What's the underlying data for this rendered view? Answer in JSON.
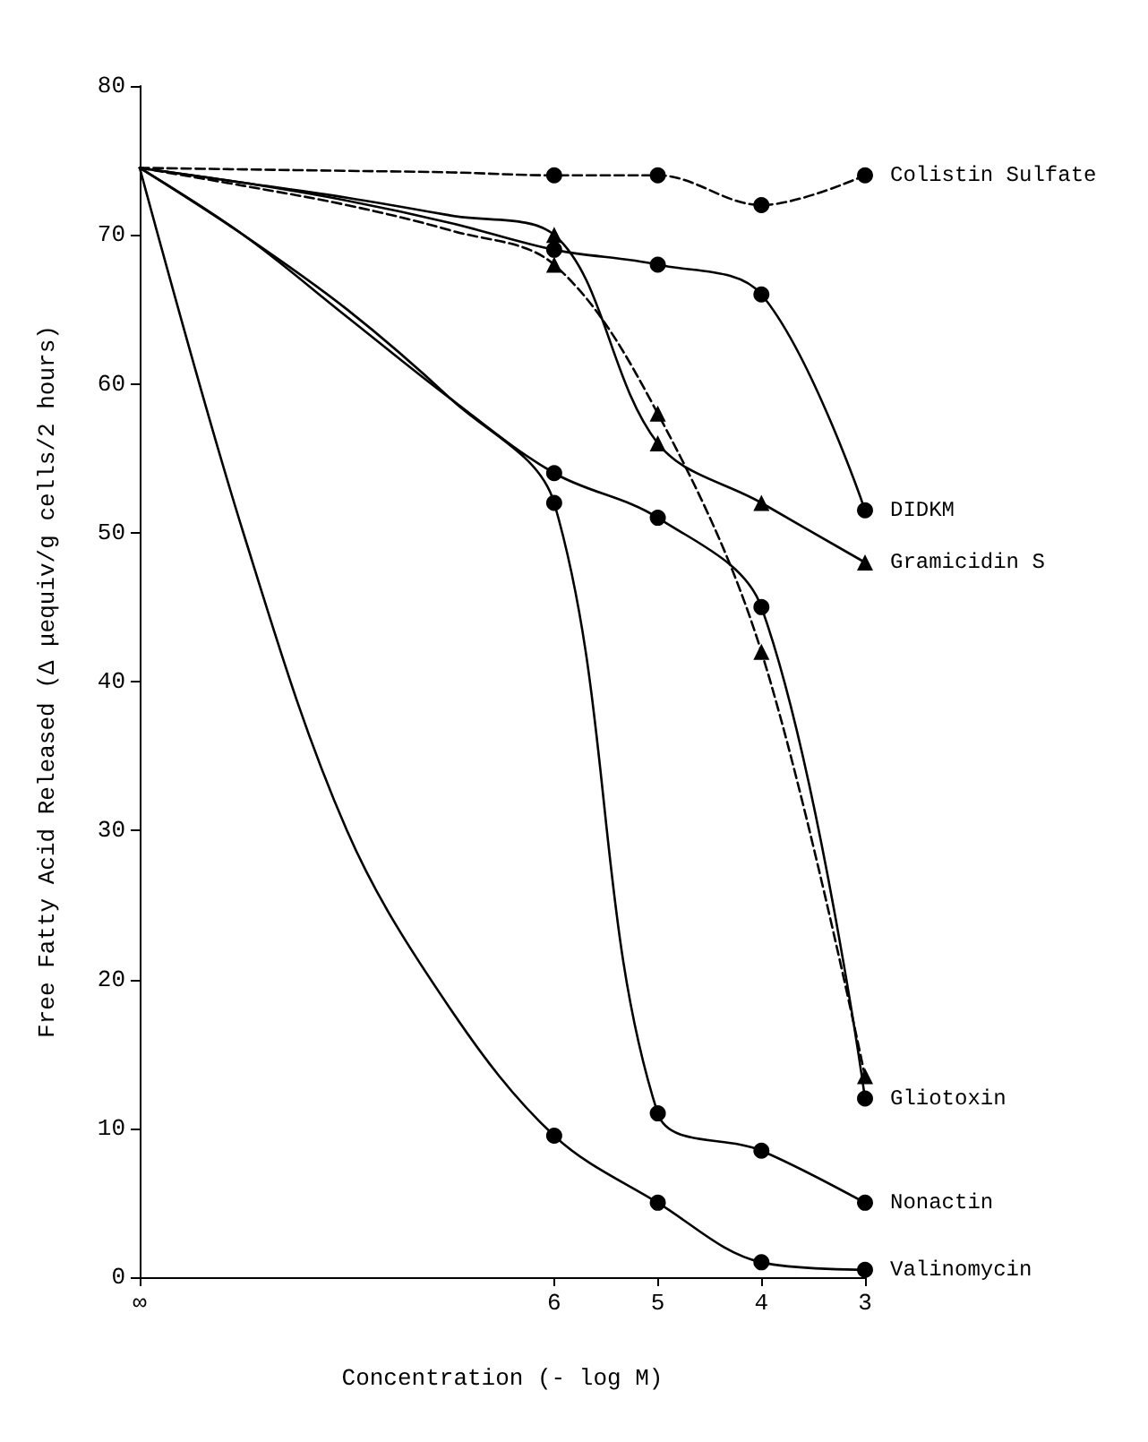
{
  "chart_data": {
    "type": "line",
    "xlabel": "Concentration (- log M)",
    "ylabel": "Free Fatty Acid Released (Δ μequiv/g cells/2 hours)",
    "categories": [
      "∞",
      null,
      null,
      null,
      "6",
      "5",
      "4",
      "3"
    ],
    "ylim": [
      0,
      80
    ],
    "yticks": [
      0,
      10,
      20,
      30,
      40,
      50,
      60,
      70,
      80
    ],
    "grid": false,
    "legend": false,
    "series": [
      {
        "name": "Colistin Sulfate",
        "color": "#000000",
        "marker": "circle",
        "line_style": "dashed",
        "values": [
          74.5,
          74.4,
          74.3,
          74.2,
          74,
          74,
          72,
          74
        ]
      },
      {
        "name": "DIDKM",
        "color": "#000000",
        "marker": "circle",
        "line_style": "solid",
        "values": [
          74.5,
          73.5,
          72.3,
          70.8,
          69,
          68,
          66,
          51.5
        ]
      },
      {
        "name": "Gramicidin S",
        "color": "#000000",
        "marker": "triangle",
        "line_style": "solid",
        "values": [
          74.5,
          73.5,
          72.5,
          71.3,
          70,
          56,
          52,
          48
        ]
      },
      {
        "color": "#000000",
        "marker": "triangle",
        "line_style": "dashed",
        "values": [
          74.5,
          73.3,
          72,
          70.3,
          68,
          58,
          42,
          13.5
        ]
      },
      {
        "name": "Gliotoxin",
        "color": "#000000",
        "marker": "circle",
        "line_style": "solid",
        "values": [
          74.5,
          70,
          64.5,
          59,
          54,
          51,
          45,
          12
        ]
      },
      {
        "name": "Nonactin",
        "color": "#000000",
        "marker": "circle",
        "line_style": "solid",
        "values": [
          74.5,
          70,
          65,
          59,
          52,
          11,
          8.5,
          5
        ]
      },
      {
        "name": "Valinomycin",
        "color": "#000000",
        "marker": "circle",
        "line_style": "solid",
        "values": [
          74.5,
          50,
          30,
          18,
          9.5,
          5,
          1,
          0.5
        ]
      }
    ]
  }
}
